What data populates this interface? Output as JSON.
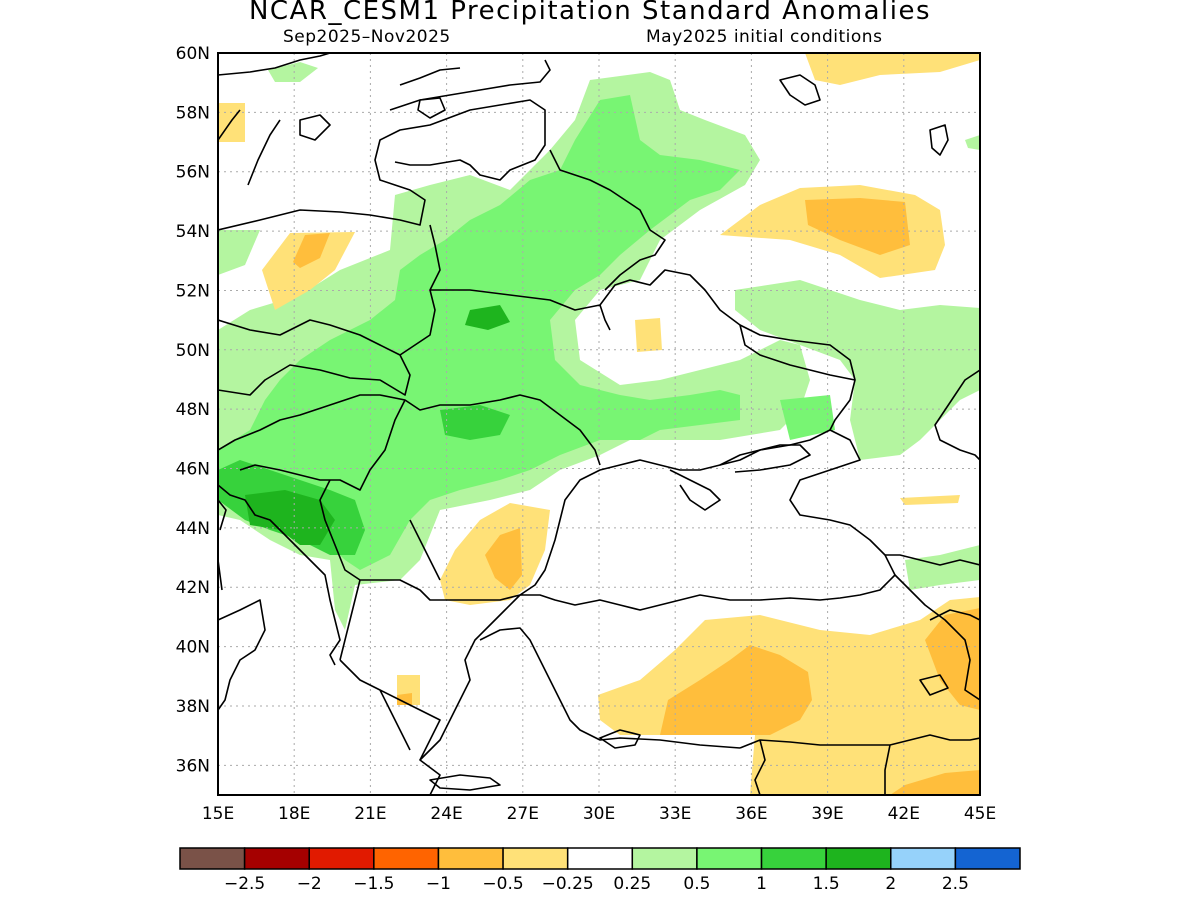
{
  "title": "NCAR_CESM1 Precipitation Standard Anomalies",
  "subtitle_left": "Sep2025–Nov2025",
  "subtitle_right": "May2025 initial conditions",
  "map": {
    "lon_range": [
      15,
      45
    ],
    "lat_range": [
      35,
      60
    ],
    "x_ticks": [
      "15E",
      "18E",
      "21E",
      "24E",
      "27E",
      "30E",
      "33E",
      "36E",
      "39E",
      "42E",
      "45E"
    ],
    "y_ticks": [
      "60N",
      "58N",
      "56N",
      "54N",
      "52N",
      "50N",
      "48N",
      "46N",
      "44N",
      "42N",
      "40N",
      "38N",
      "36N"
    ],
    "gridlines": "dotted"
  },
  "colorbar": {
    "colors": [
      "#7a5248",
      "#a50000",
      "#e11a00",
      "#ff6400",
      "#ffbe3c",
      "#ffe178",
      "#ffffff",
      "#b4f5a0",
      "#78f573",
      "#37d23c",
      "#1eb41e",
      "#96d2fa",
      "#1464d2"
    ],
    "labels": [
      "−2.5",
      "−2",
      "−1.5",
      "−1",
      "−0.5",
      "−0.25",
      "0.25",
      "0.5",
      "1",
      "1.5",
      "2",
      "2.5"
    ]
  },
  "palette": {
    "neg1": "#ffbe3c",
    "neg05": "#ffe178",
    "pos025": "#b4f5a0",
    "pos05": "#78f573",
    "pos1": "#37d23c",
    "pos15": "#1eb41e"
  }
}
